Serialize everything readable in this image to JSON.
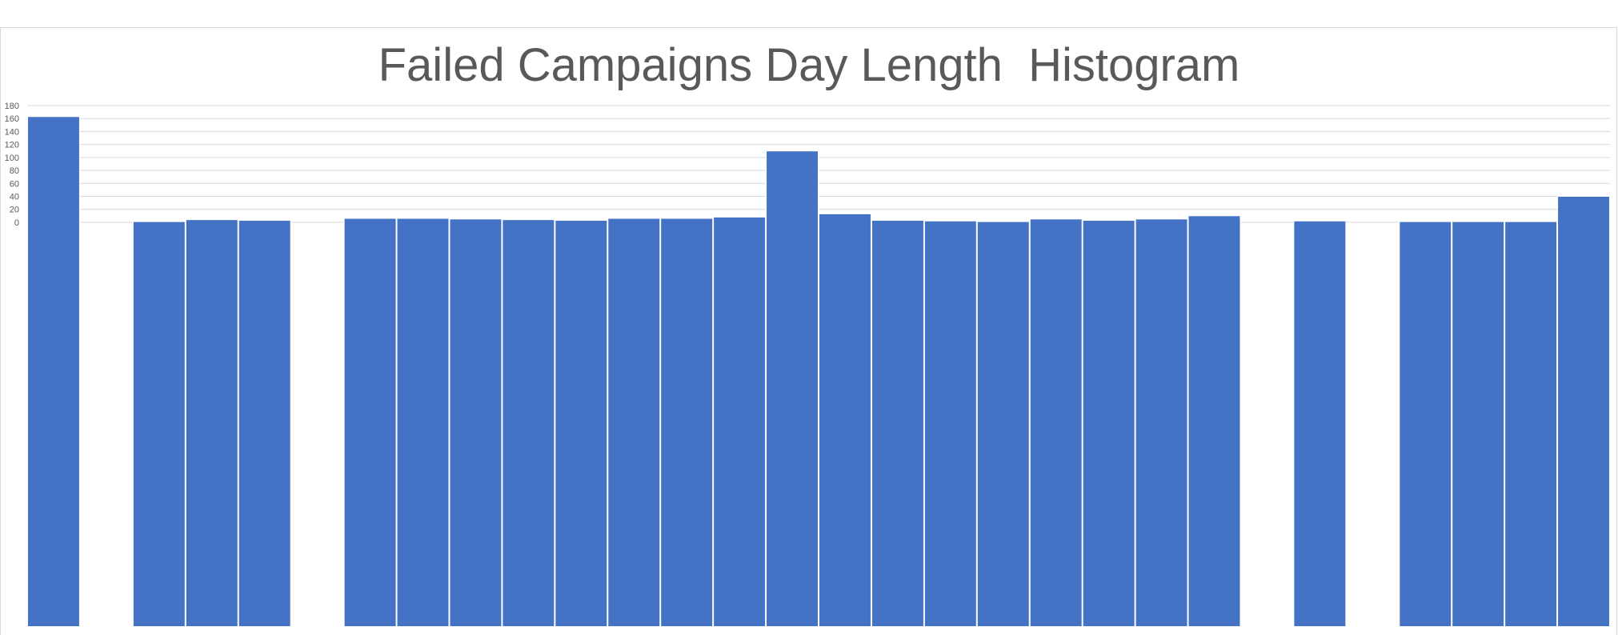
{
  "chart_data": {
    "type": "bar",
    "title": "Failed Campaigns Day Length  Histogram",
    "xlabel": "",
    "ylabel": "",
    "ylim": [
      0,
      180
    ],
    "yticks": [
      0,
      20,
      40,
      60,
      80,
      100,
      120,
      140,
      160,
      180
    ],
    "grid": true,
    "legend": "none",
    "bar_color": "#4472C4",
    "values": [
      163,
      0,
      1,
      4,
      3,
      0,
      6,
      6,
      5,
      4,
      3,
      6,
      6,
      8,
      110,
      13,
      3,
      2,
      1,
      5,
      3,
      5,
      10,
      0,
      2,
      0,
      1,
      1,
      1,
      40
    ]
  }
}
